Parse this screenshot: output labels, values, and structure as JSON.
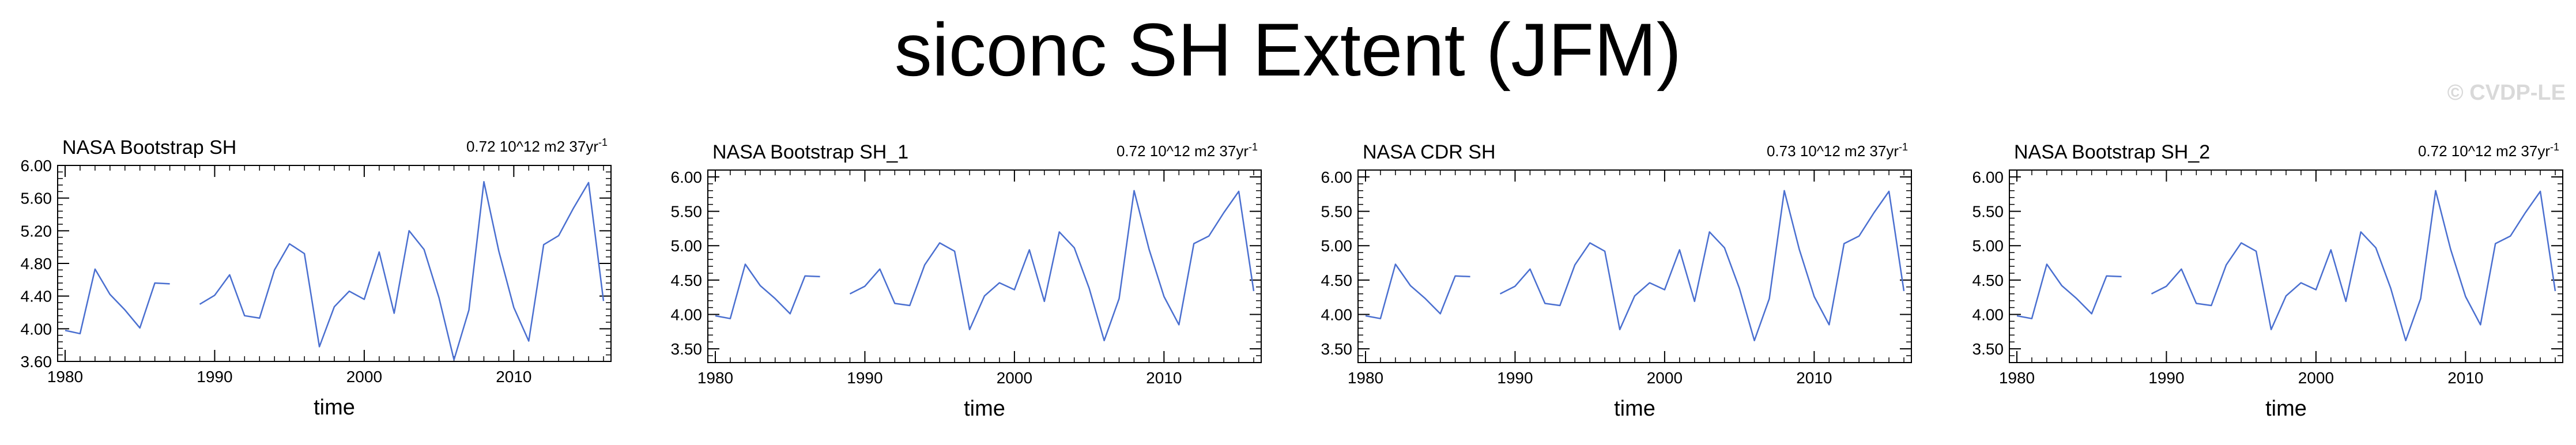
{
  "title": "siconc SH Extent (JFM)",
  "watermark": "© CVDP-LE",
  "line_color": "#4a6fd0",
  "chart_data": [
    {
      "type": "line",
      "title": "NASA Bootstrap SH",
      "stat_text": "0.72 10^12 m2 37yr",
      "stat_sup": "-1",
      "xlabel": "time",
      "ylabel": "",
      "xlim": [
        1979.5,
        2016.5
      ],
      "ylim": [
        3.6,
        6.0
      ],
      "xticks": [
        1980,
        1990,
        2000,
        2010
      ],
      "yticks": [
        "3.60",
        "4.00",
        "4.40",
        "4.80",
        "5.20",
        "5.60",
        "6.00"
      ],
      "x": [
        1980,
        1981,
        1982,
        1983,
        1984,
        1985,
        1986,
        1987,
        1988,
        1989,
        1990,
        1991,
        1992,
        1993,
        1994,
        1995,
        1996,
        1997,
        1998,
        1999,
        2000,
        2001,
        2002,
        2003,
        2004,
        2005,
        2006,
        2007,
        2008,
        2009,
        2010,
        2011,
        2012,
        2013,
        2014,
        2015,
        2016
      ],
      "values": [
        3.98,
        3.94,
        4.73,
        4.42,
        4.23,
        4.01,
        4.56,
        4.55,
        null,
        4.3,
        4.41,
        4.66,
        4.16,
        4.13,
        4.72,
        5.04,
        4.92,
        3.78,
        4.27,
        4.46,
        4.36,
        4.94,
        4.19,
        5.2,
        4.97,
        4.38,
        3.62,
        4.23,
        5.8,
        4.95,
        4.26,
        3.85,
        5.03,
        5.14,
        5.48,
        5.79,
        4.34
      ]
    },
    {
      "type": "line",
      "title": "NASA Bootstrap SH_1",
      "stat_text": "0.72 10^12 m2 37yr",
      "stat_sup": "-1",
      "xlabel": "time",
      "ylabel": "",
      "xlim": [
        1979.5,
        2016.5
      ],
      "ylim": [
        3.3,
        6.1
      ],
      "xticks": [
        1980,
        1990,
        2000,
        2010
      ],
      "yticks": [
        "3.50",
        "4.00",
        "4.50",
        "5.00",
        "5.50",
        "6.00"
      ],
      "x": [
        1980,
        1981,
        1982,
        1983,
        1984,
        1985,
        1986,
        1987,
        1988,
        1989,
        1990,
        1991,
        1992,
        1993,
        1994,
        1995,
        1996,
        1997,
        1998,
        1999,
        2000,
        2001,
        2002,
        2003,
        2004,
        2005,
        2006,
        2007,
        2008,
        2009,
        2010,
        2011,
        2012,
        2013,
        2014,
        2015,
        2016
      ],
      "values": [
        3.98,
        3.94,
        4.73,
        4.42,
        4.23,
        4.01,
        4.56,
        4.55,
        null,
        4.3,
        4.41,
        4.66,
        4.16,
        4.13,
        4.72,
        5.04,
        4.92,
        3.78,
        4.27,
        4.46,
        4.36,
        4.94,
        4.19,
        5.2,
        4.97,
        4.38,
        3.62,
        4.23,
        5.8,
        4.95,
        4.26,
        3.85,
        5.03,
        5.14,
        5.48,
        5.79,
        4.34
      ]
    },
    {
      "type": "line",
      "title": "NASA CDR SH",
      "stat_text": "0.73 10^12 m2 37yr",
      "stat_sup": "-1",
      "xlabel": "time",
      "ylabel": "",
      "xlim": [
        1979.5,
        2016.5
      ],
      "ylim": [
        3.3,
        6.1
      ],
      "xticks": [
        1980,
        1990,
        2000,
        2010
      ],
      "yticks": [
        "3.50",
        "4.00",
        "4.50",
        "5.00",
        "5.50",
        "6.00"
      ],
      "x": [
        1980,
        1981,
        1982,
        1983,
        1984,
        1985,
        1986,
        1987,
        1988,
        1989,
        1990,
        1991,
        1992,
        1993,
        1994,
        1995,
        1996,
        1997,
        1998,
        1999,
        2000,
        2001,
        2002,
        2003,
        2004,
        2005,
        2006,
        2007,
        2008,
        2009,
        2010,
        2011,
        2012,
        2013,
        2014,
        2015,
        2016
      ],
      "values": [
        3.98,
        3.94,
        4.73,
        4.42,
        4.23,
        4.01,
        4.56,
        4.55,
        null,
        4.3,
        4.41,
        4.66,
        4.16,
        4.13,
        4.72,
        5.04,
        4.92,
        3.78,
        4.27,
        4.46,
        4.36,
        4.94,
        4.19,
        5.2,
        4.97,
        4.38,
        3.62,
        4.23,
        5.8,
        4.95,
        4.26,
        3.85,
        5.03,
        5.14,
        5.48,
        5.79,
        4.34
      ]
    },
    {
      "type": "line",
      "title": "NASA Bootstrap SH_2",
      "stat_text": "0.72 10^12 m2 37yr",
      "stat_sup": "-1",
      "xlabel": "time",
      "ylabel": "",
      "xlim": [
        1979.5,
        2016.5
      ],
      "ylim": [
        3.3,
        6.1
      ],
      "xticks": [
        1980,
        1990,
        2000,
        2010
      ],
      "yticks": [
        "3.50",
        "4.00",
        "4.50",
        "5.00",
        "5.50",
        "6.00"
      ],
      "x": [
        1980,
        1981,
        1982,
        1983,
        1984,
        1985,
        1986,
        1987,
        1988,
        1989,
        1990,
        1991,
        1992,
        1993,
        1994,
        1995,
        1996,
        1997,
        1998,
        1999,
        2000,
        2001,
        2002,
        2003,
        2004,
        2005,
        2006,
        2007,
        2008,
        2009,
        2010,
        2011,
        2012,
        2013,
        2014,
        2015,
        2016
      ],
      "values": [
        3.98,
        3.94,
        4.73,
        4.42,
        4.23,
        4.01,
        4.56,
        4.55,
        null,
        4.3,
        4.41,
        4.66,
        4.16,
        4.13,
        4.72,
        5.04,
        4.92,
        3.78,
        4.27,
        4.46,
        4.36,
        4.94,
        4.19,
        5.2,
        4.97,
        4.38,
        3.62,
        4.23,
        5.8,
        4.95,
        4.26,
        3.85,
        5.03,
        5.14,
        5.48,
        5.79,
        4.34
      ]
    }
  ]
}
